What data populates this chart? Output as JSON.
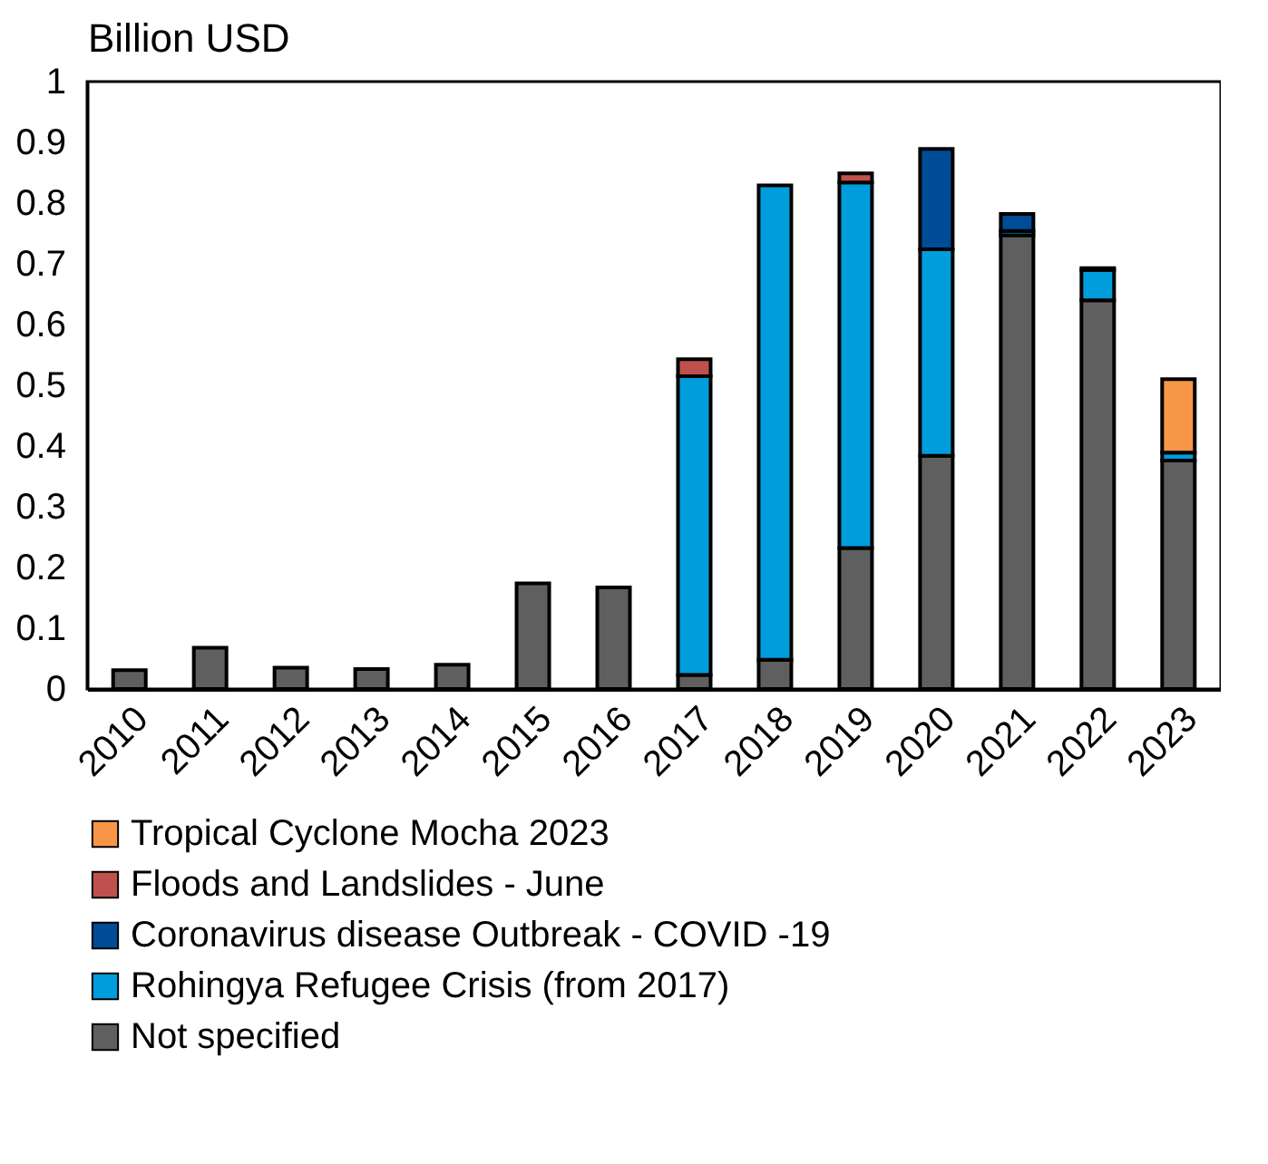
{
  "chart_data": {
    "type": "bar",
    "stacked": true,
    "ylabel": "Billion USD",
    "categories": [
      "2010",
      "2011",
      "2012",
      "2013",
      "2014",
      "2015",
      "2016",
      "2017",
      "2018",
      "2019",
      "2020",
      "2021",
      "2022",
      "2023"
    ],
    "series": [
      {
        "name": "Not specified",
        "color": "#5f5f5f",
        "values": [
          0.031,
          0.068,
          0.035,
          0.033,
          0.04,
          0.174,
          0.167,
          0.023,
          0.048,
          0.232,
          0.384,
          0.747,
          0.64,
          0.376
        ]
      },
      {
        "name": "Rohingya Refugee Crisis (from 2017)",
        "color": "#009ddc",
        "values": [
          null,
          null,
          null,
          null,
          null,
          null,
          null,
          0.492,
          0.781,
          0.602,
          0.34,
          0.007,
          0.05,
          0.013
        ]
      },
      {
        "name": "Coronavirus disease Outbreak - COVID -19",
        "color": "#004c97",
        "values": [
          null,
          null,
          null,
          null,
          null,
          null,
          null,
          null,
          null,
          null,
          0.165,
          0.028,
          0.003,
          null
        ]
      },
      {
        "name": "Floods and Landslides - June",
        "color": "#c0504d",
        "values": [
          null,
          null,
          null,
          null,
          null,
          null,
          null,
          0.028,
          null,
          0.015,
          null,
          null,
          null,
          null
        ]
      },
      {
        "name": "Tropical Cyclone Mocha 2023",
        "color": "#f79646",
        "values": [
          null,
          null,
          null,
          null,
          null,
          null,
          null,
          null,
          null,
          null,
          null,
          null,
          null,
          0.121
        ]
      }
    ],
    "ylim": [
      0,
      1
    ],
    "yticks": [
      0,
      0.1,
      0.2,
      0.3,
      0.4,
      0.5,
      0.6,
      0.7,
      0.8,
      0.9,
      1
    ],
    "grid": false,
    "legend": "bottom"
  }
}
